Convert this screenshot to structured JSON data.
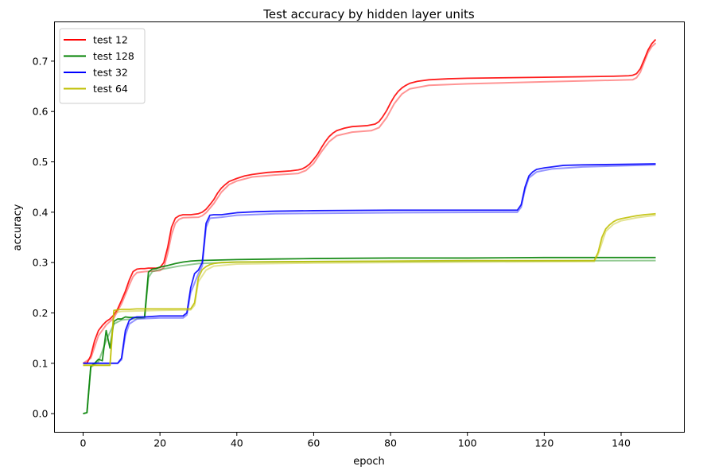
{
  "chart_data": {
    "type": "line",
    "title": "Test accuracy by hidden layer units",
    "xlabel": "epoch",
    "ylabel": "accuracy",
    "xlim": [
      -7.45,
      156.45
    ],
    "ylim": [
      -0.037,
      0.778
    ],
    "xticks": [
      0,
      20,
      40,
      60,
      80,
      100,
      120,
      140
    ],
    "yticks": [
      0.0,
      0.1,
      0.2,
      0.3,
      0.4,
      0.5,
      0.6,
      0.7
    ],
    "xtick_labels": [
      "0",
      "20",
      "40",
      "60",
      "80",
      "100",
      "120",
      "140"
    ],
    "ytick_labels": [
      "0.0",
      "0.1",
      "0.2",
      "0.3",
      "0.4",
      "0.5",
      "0.6",
      "0.7"
    ],
    "legend_position": "top-left",
    "grid": false,
    "series": [
      {
        "name": "test 12",
        "color": "#ff0000",
        "points": [
          [
            0,
            0.1
          ],
          [
            1,
            0.1
          ],
          [
            2,
            0.115
          ],
          [
            3,
            0.145
          ],
          [
            4,
            0.165
          ],
          [
            5,
            0.175
          ],
          [
            6,
            0.183
          ],
          [
            7,
            0.188
          ],
          [
            8,
            0.196
          ],
          [
            9,
            0.208
          ],
          [
            10,
            0.225
          ],
          [
            11,
            0.243
          ],
          [
            12,
            0.265
          ],
          [
            13,
            0.282
          ],
          [
            14,
            0.287
          ],
          [
            15,
            0.288
          ],
          [
            16,
            0.288
          ],
          [
            17,
            0.289
          ],
          [
            18,
            0.289
          ],
          [
            19,
            0.289
          ],
          [
            20,
            0.29
          ],
          [
            21,
            0.3
          ],
          [
            22,
            0.33
          ],
          [
            23,
            0.37
          ],
          [
            24,
            0.388
          ],
          [
            25,
            0.393
          ],
          [
            26,
            0.395
          ],
          [
            28,
            0.395
          ],
          [
            30,
            0.397
          ],
          [
            31,
            0.4
          ],
          [
            32,
            0.406
          ],
          [
            33,
            0.415
          ],
          [
            34,
            0.425
          ],
          [
            35,
            0.438
          ],
          [
            36,
            0.448
          ],
          [
            37,
            0.455
          ],
          [
            38,
            0.461
          ],
          [
            40,
            0.467
          ],
          [
            42,
            0.472
          ],
          [
            44,
            0.475
          ],
          [
            46,
            0.477
          ],
          [
            48,
            0.479
          ],
          [
            50,
            0.48
          ],
          [
            52,
            0.481
          ],
          [
            54,
            0.482
          ],
          [
            56,
            0.484
          ],
          [
            57,
            0.486
          ],
          [
            58,
            0.49
          ],
          [
            59,
            0.496
          ],
          [
            60,
            0.505
          ],
          [
            61,
            0.515
          ],
          [
            62,
            0.528
          ],
          [
            63,
            0.54
          ],
          [
            64,
            0.55
          ],
          [
            65,
            0.557
          ],
          [
            66,
            0.562
          ],
          [
            68,
            0.567
          ],
          [
            70,
            0.57
          ],
          [
            72,
            0.571
          ],
          [
            74,
            0.572
          ],
          [
            76,
            0.575
          ],
          [
            77,
            0.58
          ],
          [
            78,
            0.59
          ],
          [
            79,
            0.602
          ],
          [
            80,
            0.617
          ],
          [
            81,
            0.63
          ],
          [
            82,
            0.64
          ],
          [
            83,
            0.647
          ],
          [
            84,
            0.652
          ],
          [
            85,
            0.656
          ],
          [
            87,
            0.66
          ],
          [
            90,
            0.663
          ],
          [
            95,
            0.665
          ],
          [
            100,
            0.666
          ],
          [
            110,
            0.667
          ],
          [
            120,
            0.668
          ],
          [
            130,
            0.669
          ],
          [
            138,
            0.67
          ],
          [
            142,
            0.671
          ],
          [
            143,
            0.672
          ],
          [
            144,
            0.675
          ],
          [
            145,
            0.685
          ],
          [
            146,
            0.703
          ],
          [
            147,
            0.722
          ],
          [
            148,
            0.735
          ],
          [
            149,
            0.743
          ]
        ],
        "smoothed_points": [
          [
            0,
            0.1
          ],
          [
            2,
            0.11
          ],
          [
            4,
            0.155
          ],
          [
            6,
            0.176
          ],
          [
            8,
            0.19
          ],
          [
            10,
            0.218
          ],
          [
            12,
            0.255
          ],
          [
            13,
            0.272
          ],
          [
            14,
            0.28
          ],
          [
            16,
            0.282
          ],
          [
            20,
            0.284
          ],
          [
            21,
            0.29
          ],
          [
            22,
            0.318
          ],
          [
            23,
            0.355
          ],
          [
            24,
            0.378
          ],
          [
            25,
            0.386
          ],
          [
            26,
            0.389
          ],
          [
            30,
            0.39
          ],
          [
            31,
            0.393
          ],
          [
            32,
            0.399
          ],
          [
            34,
            0.417
          ],
          [
            36,
            0.44
          ],
          [
            38,
            0.455
          ],
          [
            40,
            0.462
          ],
          [
            44,
            0.47
          ],
          [
            50,
            0.474
          ],
          [
            56,
            0.477
          ],
          [
            58,
            0.483
          ],
          [
            60,
            0.497
          ],
          [
            62,
            0.52
          ],
          [
            64,
            0.54
          ],
          [
            66,
            0.552
          ],
          [
            70,
            0.559
          ],
          [
            75,
            0.562
          ],
          [
            77,
            0.568
          ],
          [
            79,
            0.588
          ],
          [
            81,
            0.616
          ],
          [
            83,
            0.635
          ],
          [
            85,
            0.645
          ],
          [
            90,
            0.652
          ],
          [
            100,
            0.655
          ],
          [
            120,
            0.659
          ],
          [
            143,
            0.663
          ],
          [
            144,
            0.667
          ],
          [
            145,
            0.678
          ],
          [
            146,
            0.698
          ],
          [
            147,
            0.717
          ],
          [
            148,
            0.729
          ],
          [
            149,
            0.736
          ]
        ]
      },
      {
        "name": "test 128",
        "color": "#008000",
        "points": [
          [
            0,
            0.0
          ],
          [
            1,
            0.002
          ],
          [
            2,
            0.094
          ],
          [
            3,
            0.1
          ],
          [
            4,
            0.108
          ],
          [
            5,
            0.105
          ],
          [
            6,
            0.165
          ],
          [
            7,
            0.13
          ],
          [
            8,
            0.183
          ],
          [
            9,
            0.188
          ],
          [
            10,
            0.188
          ],
          [
            11,
            0.192
          ],
          [
            12,
            0.191
          ],
          [
            13,
            0.191
          ],
          [
            15,
            0.191
          ],
          [
            16,
            0.192
          ],
          [
            17,
            0.281
          ],
          [
            18,
            0.287
          ],
          [
            19,
            0.288
          ],
          [
            20,
            0.291
          ],
          [
            22,
            0.294
          ],
          [
            24,
            0.298
          ],
          [
            26,
            0.301
          ],
          [
            28,
            0.303
          ],
          [
            30,
            0.304
          ],
          [
            35,
            0.305
          ],
          [
            40,
            0.306
          ],
          [
            50,
            0.307
          ],
          [
            60,
            0.308
          ],
          [
            80,
            0.309
          ],
          [
            100,
            0.309
          ],
          [
            120,
            0.31
          ],
          [
            149,
            0.31
          ]
        ],
        "smoothed_points": [
          [
            0,
            0.0
          ],
          [
            1,
            0.002
          ],
          [
            2,
            0.092
          ],
          [
            4,
            0.103
          ],
          [
            6,
            0.145
          ],
          [
            8,
            0.178
          ],
          [
            10,
            0.186
          ],
          [
            14,
            0.189
          ],
          [
            16,
            0.19
          ],
          [
            17,
            0.27
          ],
          [
            18,
            0.282
          ],
          [
            20,
            0.286
          ],
          [
            25,
            0.293
          ],
          [
            30,
            0.298
          ],
          [
            40,
            0.301
          ],
          [
            60,
            0.302
          ],
          [
            100,
            0.303
          ],
          [
            149,
            0.304
          ]
        ]
      },
      {
        "name": "test 32",
        "color": "#0000ff",
        "points": [
          [
            0,
            0.1
          ],
          [
            5,
            0.1
          ],
          [
            9,
            0.1
          ],
          [
            10,
            0.11
          ],
          [
            11,
            0.165
          ],
          [
            12,
            0.185
          ],
          [
            13,
            0.19
          ],
          [
            14,
            0.192
          ],
          [
            16,
            0.192
          ],
          [
            18,
            0.193
          ],
          [
            20,
            0.194
          ],
          [
            26,
            0.194
          ],
          [
            27,
            0.2
          ],
          [
            28,
            0.25
          ],
          [
            29,
            0.278
          ],
          [
            30,
            0.285
          ],
          [
            31,
            0.3
          ],
          [
            32,
            0.378
          ],
          [
            33,
            0.394
          ],
          [
            34,
            0.395
          ],
          [
            36,
            0.395
          ],
          [
            38,
            0.397
          ],
          [
            40,
            0.399
          ],
          [
            45,
            0.401
          ],
          [
            50,
            0.402
          ],
          [
            60,
            0.403
          ],
          [
            80,
            0.404
          ],
          [
            100,
            0.404
          ],
          [
            113,
            0.404
          ],
          [
            114,
            0.415
          ],
          [
            115,
            0.45
          ],
          [
            116,
            0.472
          ],
          [
            117,
            0.48
          ],
          [
            118,
            0.485
          ],
          [
            120,
            0.488
          ],
          [
            122,
            0.49
          ],
          [
            125,
            0.493
          ],
          [
            130,
            0.494
          ],
          [
            140,
            0.495
          ],
          [
            149,
            0.496
          ]
        ],
        "smoothed_points": [
          [
            0,
            0.1
          ],
          [
            9,
            0.1
          ],
          [
            10,
            0.107
          ],
          [
            11,
            0.155
          ],
          [
            12,
            0.178
          ],
          [
            14,
            0.188
          ],
          [
            20,
            0.19
          ],
          [
            26,
            0.19
          ],
          [
            27,
            0.196
          ],
          [
            28,
            0.24
          ],
          [
            30,
            0.278
          ],
          [
            31,
            0.293
          ],
          [
            32,
            0.37
          ],
          [
            33,
            0.388
          ],
          [
            36,
            0.39
          ],
          [
            40,
            0.394
          ],
          [
            50,
            0.397
          ],
          [
            80,
            0.399
          ],
          [
            113,
            0.4
          ],
          [
            114,
            0.41
          ],
          [
            115,
            0.445
          ],
          [
            116,
            0.468
          ],
          [
            118,
            0.48
          ],
          [
            122,
            0.486
          ],
          [
            130,
            0.49
          ],
          [
            149,
            0.494
          ]
        ]
      },
      {
        "name": "test 64",
        "color": "#bfbf00",
        "points": [
          [
            0,
            0.096
          ],
          [
            3,
            0.096
          ],
          [
            7,
            0.096
          ],
          [
            8,
            0.205
          ],
          [
            9,
            0.206
          ],
          [
            10,
            0.207
          ],
          [
            12,
            0.207
          ],
          [
            14,
            0.208
          ],
          [
            16,
            0.208
          ],
          [
            20,
            0.208
          ],
          [
            28,
            0.208
          ],
          [
            29,
            0.22
          ],
          [
            30,
            0.27
          ],
          [
            31,
            0.286
          ],
          [
            32,
            0.292
          ],
          [
            33,
            0.296
          ],
          [
            34,
            0.298
          ],
          [
            36,
            0.3
          ],
          [
            40,
            0.301
          ],
          [
            60,
            0.302
          ],
          [
            100,
            0.304
          ],
          [
            133,
            0.304
          ],
          [
            134,
            0.32
          ],
          [
            135,
            0.35
          ],
          [
            136,
            0.367
          ],
          [
            137,
            0.375
          ],
          [
            138,
            0.381
          ],
          [
            139,
            0.385
          ],
          [
            140,
            0.387
          ],
          [
            142,
            0.39
          ],
          [
            144,
            0.393
          ],
          [
            146,
            0.395
          ],
          [
            149,
            0.397
          ]
        ],
        "smoothed_points": [
          [
            0,
            0.096
          ],
          [
            7,
            0.096
          ],
          [
            8,
            0.2
          ],
          [
            10,
            0.203
          ],
          [
            20,
            0.205
          ],
          [
            28,
            0.206
          ],
          [
            29,
            0.215
          ],
          [
            30,
            0.262
          ],
          [
            32,
            0.285
          ],
          [
            34,
            0.293
          ],
          [
            40,
            0.297
          ],
          [
            60,
            0.299
          ],
          [
            100,
            0.301
          ],
          [
            133,
            0.302
          ],
          [
            134,
            0.316
          ],
          [
            136,
            0.362
          ],
          [
            138,
            0.376
          ],
          [
            140,
            0.383
          ],
          [
            144,
            0.389
          ],
          [
            149,
            0.394
          ]
        ]
      }
    ]
  }
}
